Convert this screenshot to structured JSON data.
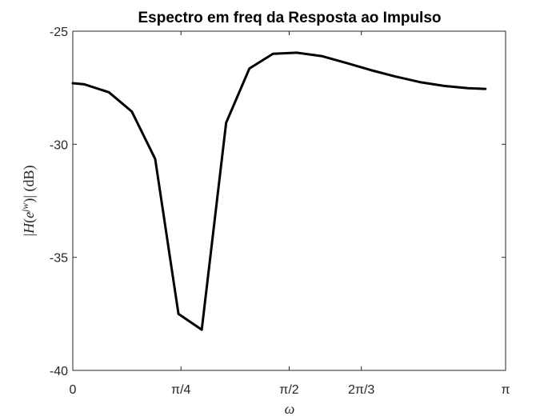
{
  "chart_data": {
    "type": "line",
    "title": "Espectro em freq da Resposta ao Impulso",
    "xlabel": "ω",
    "ylabel": "|H(e^{jw})| (dB)",
    "ylabel_parts": {
      "bar_open": "|",
      "H": "H",
      "paren_open": "(",
      "e": "e",
      "exp": "jw",
      "paren_close": ")",
      "bar_close": "|",
      "units": " (dB)"
    },
    "xlim": [
      0,
      3.14159
    ],
    "ylim": [
      -40,
      -25
    ],
    "xticks": [
      {
        "value": 0,
        "label": "0"
      },
      {
        "value": 0.785398,
        "label": "π/4"
      },
      {
        "value": 1.570796,
        "label": "π/2"
      },
      {
        "value": 2.094395,
        "label": "2π/3"
      },
      {
        "value": 3.14159,
        "label": "π"
      }
    ],
    "yticks": [
      {
        "value": -25,
        "label": "-25"
      },
      {
        "value": -30,
        "label": "-30"
      },
      {
        "value": -35,
        "label": "-35"
      },
      {
        "value": -40,
        "label": "-40"
      }
    ],
    "grid": false,
    "line_color": "#000000",
    "series": [
      {
        "x": [
          0,
          0.084,
          0.262,
          0.428,
          0.598,
          0.767,
          0.936,
          1.113,
          1.282,
          1.453,
          1.625,
          1.806,
          1.983,
          2.163,
          2.34,
          2.518,
          2.695,
          2.87,
          2.995
        ],
        "y": [
          -27.3,
          -27.35,
          -27.7,
          -28.55,
          -30.65,
          -37.5,
          -38.2,
          -29.05,
          -26.65,
          -26.0,
          -25.95,
          -26.1,
          -26.4,
          -26.72,
          -27.0,
          -27.25,
          -27.42,
          -27.52,
          -27.55
        ]
      }
    ]
  }
}
